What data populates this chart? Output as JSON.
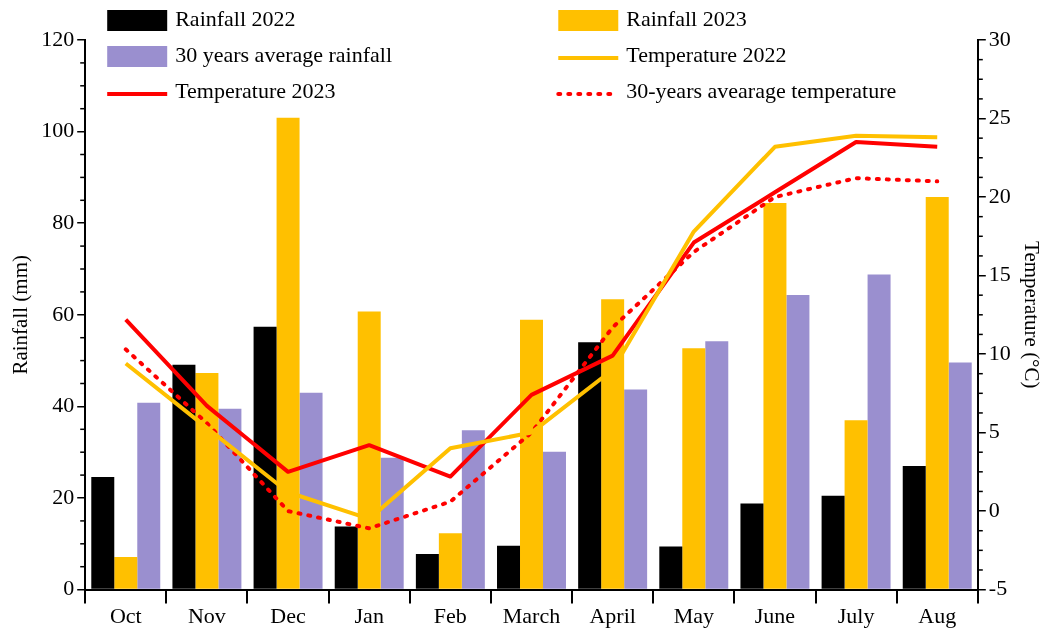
{
  "chart_data": {
    "type": "bar",
    "ylabel": "Rainfall (mm)",
    "y2label": "Temperature (°C)",
    "categories": [
      "Oct",
      "Nov",
      "Dec",
      "Jan",
      "Feb",
      "March",
      "April",
      "May",
      "June",
      "July",
      "Aug"
    ],
    "series": [
      {
        "name": "Rainfall 2022",
        "color": "#000000",
        "values": [
          24.6,
          49.1,
          57.4,
          13.8,
          7.8,
          9.6,
          54,
          9.4,
          18.8,
          20.5,
          27
        ]
      },
      {
        "name": "Rainfall 2023",
        "color": "#ffc000",
        "values": [
          7.1,
          47.3,
          103,
          60.7,
          12.3,
          58.9,
          63.4,
          52.7,
          84.4,
          37,
          85.7
        ]
      },
      {
        "name": "30 years average rainfall",
        "color": "#9a8fcf",
        "values": [
          40.8,
          39.5,
          43,
          28.8,
          34.8,
          30.1,
          43.7,
          54.2,
          64.3,
          68.8,
          49.6
        ]
      },
      {
        "name": "Temperature 2022",
        "type": "line",
        "axis": "y2",
        "color": "#ffc000",
        "line_style": "solid",
        "values": [
          9.4,
          5.3,
          1.2,
          -0.5,
          4.0,
          5.0,
          9.0,
          17.8,
          23.2,
          23.9,
          23.8
        ]
      },
      {
        "name": "Temperature 2023",
        "type": "line",
        "axis": "y2",
        "color": "#ff0000",
        "line_style": "solid",
        "values": [
          12.2,
          6.7,
          2.5,
          4.2,
          2.2,
          7.4,
          9.9,
          17.1,
          20.3,
          23.5,
          23.2
        ]
      },
      {
        "name": "30-years avearage temperature",
        "type": "line",
        "axis": "y2",
        "color": "#ff0000",
        "line_style": "dotted",
        "values": [
          10.3,
          5.6,
          0,
          -1.1,
          0.6,
          5.0,
          11.7,
          16.5,
          20,
          21.2,
          21
        ]
      }
    ],
    "ylim": [
      0,
      120
    ],
    "yticks": [
      0,
      20,
      40,
      60,
      80,
      100,
      120
    ],
    "y2lim": [
      -5,
      30
    ],
    "y2ticks": [
      -5,
      0,
      5,
      10,
      15,
      20,
      25,
      30
    ],
    "grid": false,
    "legend": "top",
    "marker": "none"
  }
}
